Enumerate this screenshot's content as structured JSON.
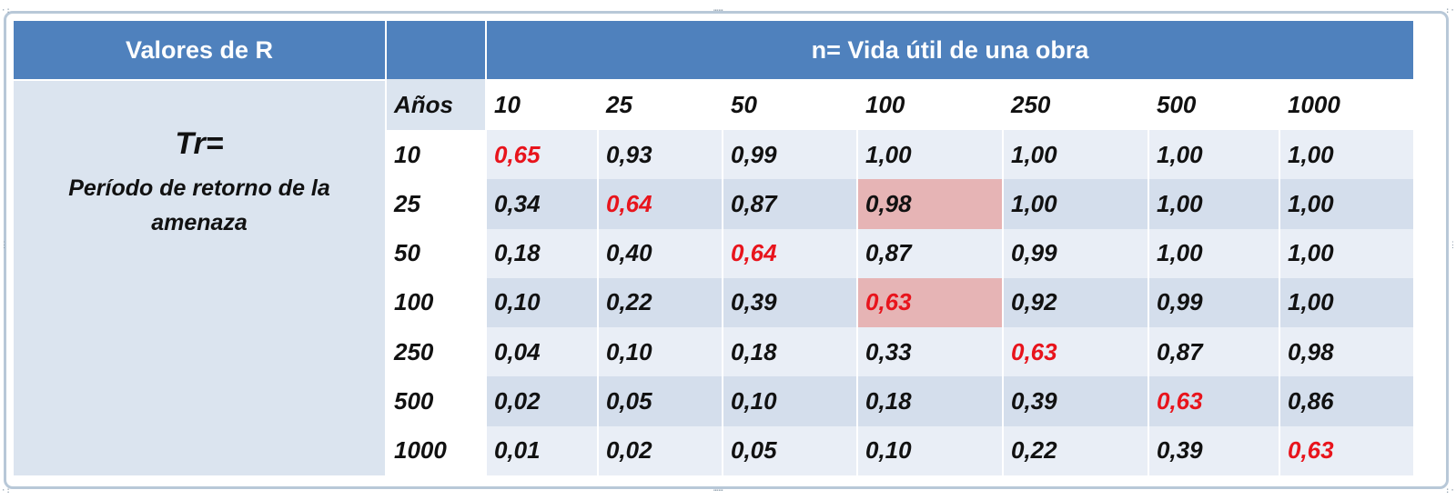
{
  "table": {
    "header_r": "Valores de R",
    "header_n": "n= Vida útil de una obra",
    "tr_symbol": "Tr=",
    "tr_description": "Período de retorno de la amenaza",
    "anos_label": "Años",
    "columns": [
      "10",
      "25",
      "50",
      "100",
      "250",
      "500",
      "1000"
    ],
    "rows": [
      {
        "tr": "10",
        "values": [
          "0,65",
          "0,93",
          "0,99",
          "1,00",
          "1,00",
          "1,00",
          "1,00"
        ]
      },
      {
        "tr": "25",
        "values": [
          "0,34",
          "0,64",
          "0,87",
          "0,98",
          "1,00",
          "1,00",
          "1,00"
        ]
      },
      {
        "tr": "50",
        "values": [
          "0,18",
          "0,40",
          "0,64",
          "0,87",
          "0,99",
          "1,00",
          "1,00"
        ]
      },
      {
        "tr": "100",
        "values": [
          "0,10",
          "0,22",
          "0,39",
          "0,63",
          "0,92",
          "0,99",
          "1,00"
        ]
      },
      {
        "tr": "250",
        "values": [
          "0,04",
          "0,10",
          "0,18",
          "0,33",
          "0,63",
          "0,87",
          "0,98"
        ]
      },
      {
        "tr": "500",
        "values": [
          "0,02",
          "0,05",
          "0,10",
          "0,18",
          "0,39",
          "0,63",
          "0,86"
        ]
      },
      {
        "tr": "1000",
        "values": [
          "0,01",
          "0,02",
          "0,05",
          "0,10",
          "0,22",
          "0,39",
          "0,63"
        ]
      }
    ],
    "red_cells": [
      [
        0,
        0
      ],
      [
        1,
        1
      ],
      [
        2,
        2
      ],
      [
        3,
        3
      ],
      [
        4,
        4
      ],
      [
        5,
        5
      ],
      [
        6,
        6
      ]
    ],
    "highlighted_cells": [
      [
        1,
        3
      ],
      [
        3,
        3
      ]
    ]
  },
  "colors": {
    "header_blue": "#4f81bd",
    "red_text": "#e8141c",
    "highlight_pink": "#e6b4b5"
  }
}
